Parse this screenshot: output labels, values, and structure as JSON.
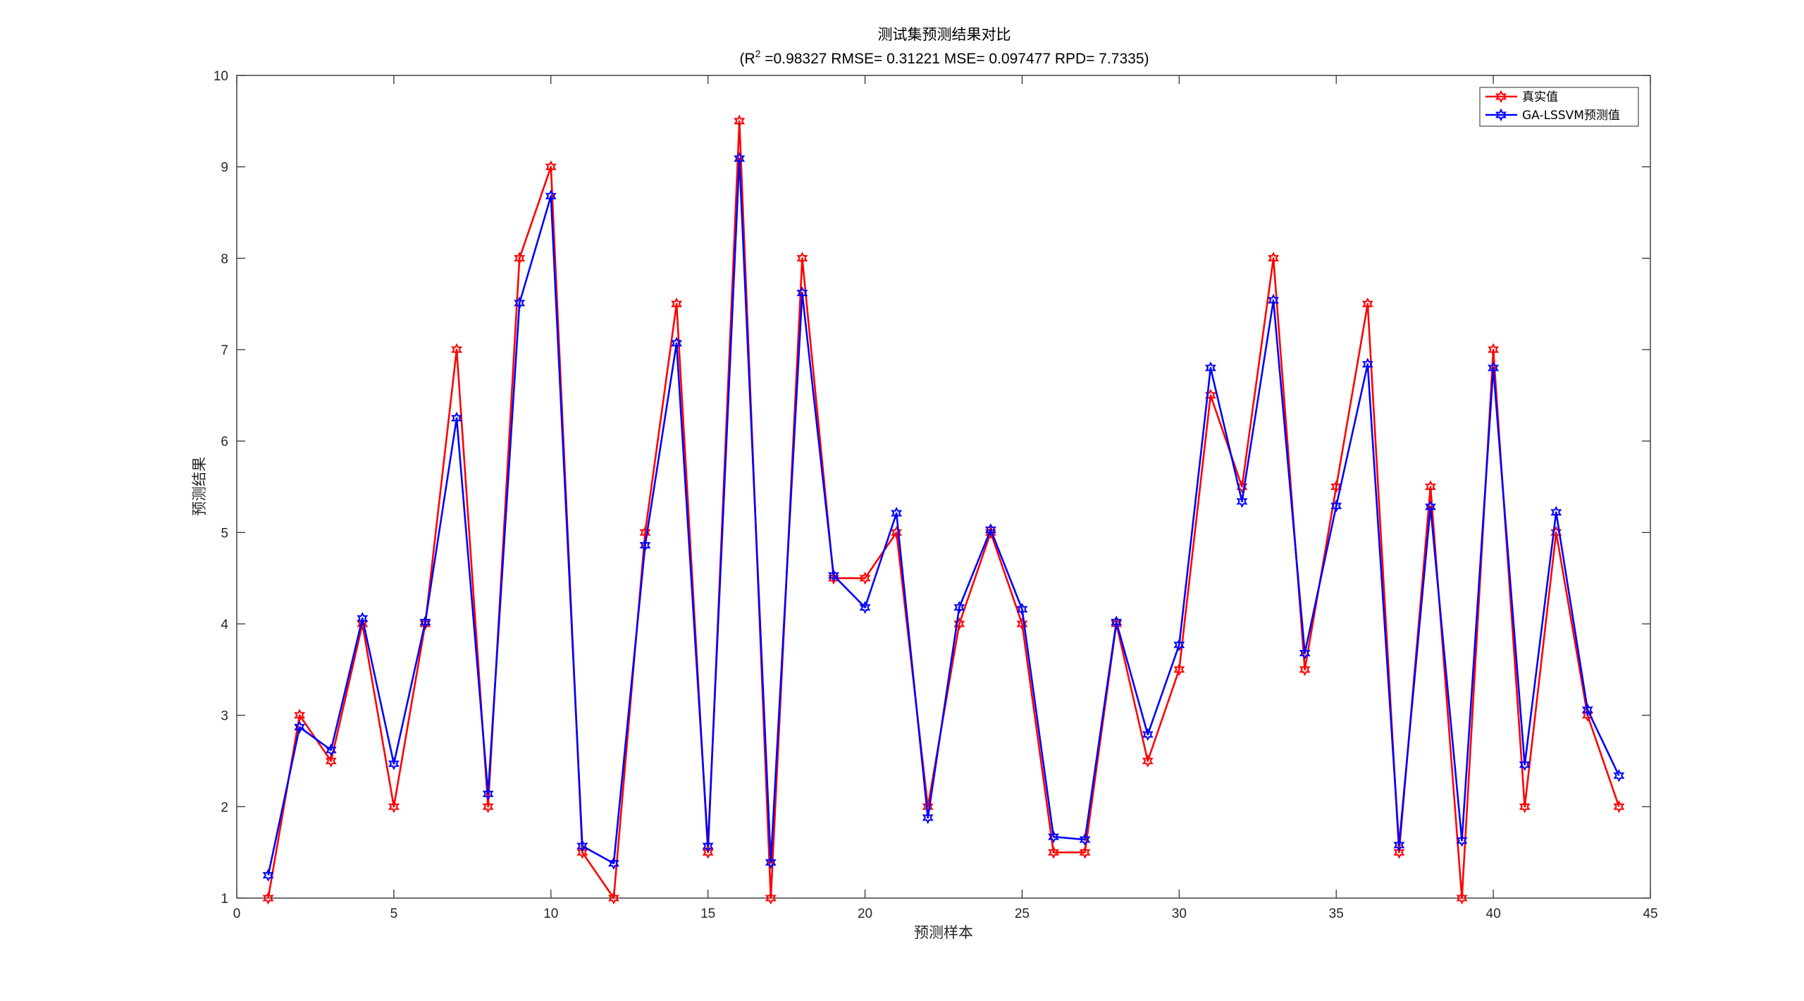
{
  "chart_data": {
    "type": "line",
    "title": "测试集预测结果对比",
    "subtitle": {
      "prefix": "(R",
      "superscript": "2",
      "rest": " =0.98327 RMSE= 0.31221 MSE= 0.097477 RPD= 7.7335)"
    },
    "xlabel": "预测样本",
    "ylabel": "预测结果",
    "xlim": [
      0,
      45
    ],
    "ylim": [
      1,
      10
    ],
    "xticks": [
      "0",
      "5",
      "10",
      "15",
      "20",
      "25",
      "30",
      "35",
      "40",
      "45"
    ],
    "yticks": [
      "1",
      "2",
      "3",
      "4",
      "5",
      "6",
      "7",
      "8",
      "9",
      "10"
    ],
    "grid": false,
    "legend_position": "top-right",
    "x": [
      1,
      2,
      3,
      4,
      5,
      6,
      7,
      8,
      9,
      10,
      11,
      12,
      13,
      14,
      15,
      16,
      17,
      18,
      19,
      20,
      21,
      22,
      23,
      24,
      25,
      26,
      27,
      28,
      29,
      30,
      31,
      32,
      33,
      34,
      35,
      36,
      37,
      38,
      39,
      40,
      41,
      42,
      43,
      44
    ],
    "series": [
      {
        "name": "真实值",
        "color": "#ff0000",
        "marker": "hexagram",
        "values": [
          1,
          3,
          2.5,
          4,
          2,
          4,
          7,
          2,
          8,
          9,
          1.5,
          1,
          5,
          7.5,
          1.5,
          9.5,
          1,
          8,
          4.5,
          4.5,
          5,
          2,
          4,
          5,
          4,
          1.5,
          1.5,
          4,
          2.5,
          3.5,
          6.5,
          5.5,
          8,
          3.5,
          5.5,
          7.5,
          1.5,
          5.5,
          1,
          7,
          2,
          5,
          3,
          2
        ]
      },
      {
        "name": "GA-LSSVM预测值",
        "color": "#0000ff",
        "marker": "hexagram",
        "values": [
          1.25,
          2.87,
          2.62,
          4.06,
          2.47,
          4.02,
          6.25,
          2.14,
          7.51,
          8.68,
          1.57,
          1.38,
          4.86,
          7.07,
          1.57,
          9.09,
          1.39,
          7.62,
          4.53,
          4.18,
          5.21,
          1.88,
          4.18,
          5.03,
          4.16,
          1.67,
          1.64,
          4.02,
          2.79,
          3.77,
          6.8,
          5.34,
          7.54,
          3.68,
          5.29,
          6.84,
          1.58,
          5.28,
          1.63,
          6.8,
          2.46,
          5.22,
          3.06,
          2.34
        ]
      }
    ]
  }
}
